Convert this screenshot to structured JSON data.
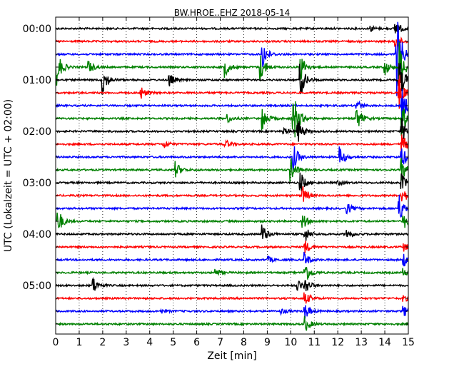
{
  "chart_data": {
    "type": "line",
    "title": "BW.HROE..EHZ 2018-05-14",
    "xlabel": "Zeit  [min]",
    "ylabel": "UTC (Lokalzeit = UTC + 02:00)",
    "xlim": [
      0,
      15
    ],
    "x_ticks": [
      "0",
      "1",
      "2",
      "3",
      "4",
      "5",
      "6",
      "7",
      "8",
      "9",
      "10",
      "11",
      "12",
      "13",
      "14",
      "15"
    ],
    "y_tick_labels": [
      "00:00",
      "01:00",
      "02:00",
      "03:00",
      "04:00",
      "05:00"
    ],
    "trace_interval_min": 15,
    "grid": "vertical dotted lines at each minute",
    "color_cycle": [
      "#000000",
      "#ff0000",
      "#0000ff",
      "#008000"
    ],
    "traces": [
      {
        "start": "00:00",
        "events": [
          {
            "t": 13.4,
            "amp": 4
          },
          {
            "t": 14.45,
            "amp": 14
          }
        ]
      },
      {
        "start": "00:15",
        "events": [
          {
            "t": 14.45,
            "amp": 14
          }
        ]
      },
      {
        "start": "00:30",
        "events": [
          {
            "t": 14.5,
            "amp": 60
          },
          {
            "t": 8.8,
            "amp": 20
          }
        ]
      },
      {
        "start": "00:45",
        "events": [
          {
            "t": 0.05,
            "amp": 25
          },
          {
            "t": 1.4,
            "amp": 10
          },
          {
            "t": 7.2,
            "amp": 14
          },
          {
            "t": 8.7,
            "amp": 22
          },
          {
            "t": 10.4,
            "amp": 22
          },
          {
            "t": 14.0,
            "amp": 12
          },
          {
            "t": 14.6,
            "amp": 40
          }
        ]
      },
      {
        "start": "01:00",
        "events": [
          {
            "t": 2.0,
            "amp": 22
          },
          {
            "t": 4.8,
            "amp": 12
          },
          {
            "t": 10.4,
            "amp": 25
          },
          {
            "t": 14.6,
            "amp": 35
          }
        ]
      },
      {
        "start": "01:15",
        "events": [
          {
            "t": 3.6,
            "amp": 10
          },
          {
            "t": 14.6,
            "amp": 30
          }
        ]
      },
      {
        "start": "01:30",
        "events": [
          {
            "t": 12.8,
            "amp": 8
          },
          {
            "t": 14.7,
            "amp": 30
          }
        ]
      },
      {
        "start": "01:45",
        "events": [
          {
            "t": 7.3,
            "amp": 6
          },
          {
            "t": 8.8,
            "amp": 16
          },
          {
            "t": 10.1,
            "amp": 45
          },
          {
            "t": 12.8,
            "amp": 18
          },
          {
            "t": 14.7,
            "amp": 28
          }
        ]
      },
      {
        "start": "02:00",
        "events": [
          {
            "t": 9.7,
            "amp": 5
          },
          {
            "t": 10.3,
            "amp": 18
          },
          {
            "t": 14.7,
            "amp": 20
          }
        ]
      },
      {
        "start": "02:15",
        "events": [
          {
            "t": 4.6,
            "amp": 6
          },
          {
            "t": 7.2,
            "amp": 7
          },
          {
            "t": 14.7,
            "amp": 18
          }
        ]
      },
      {
        "start": "02:30",
        "events": [
          {
            "t": 12.1,
            "amp": 14
          },
          {
            "t": 10.1,
            "amp": 20
          },
          {
            "t": 14.7,
            "amp": 18
          }
        ]
      },
      {
        "start": "02:45",
        "events": [
          {
            "t": 5.1,
            "amp": 12
          },
          {
            "t": 10.0,
            "amp": 18
          },
          {
            "t": 14.7,
            "amp": 16
          }
        ]
      },
      {
        "start": "03:00",
        "events": [
          {
            "t": 12.0,
            "amp": 4
          },
          {
            "t": 10.4,
            "amp": 16
          },
          {
            "t": 14.7,
            "amp": 14
          }
        ]
      },
      {
        "start": "03:15",
        "events": [
          {
            "t": 10.5,
            "amp": 14
          },
          {
            "t": 14.7,
            "amp": 16
          }
        ]
      },
      {
        "start": "03:30",
        "events": [
          {
            "t": 12.4,
            "amp": 8
          },
          {
            "t": 14.6,
            "amp": 22
          }
        ]
      },
      {
        "start": "03:45",
        "events": [
          {
            "t": 0.1,
            "amp": 18
          },
          {
            "t": 10.5,
            "amp": 12
          },
          {
            "t": 14.8,
            "amp": 12
          }
        ]
      },
      {
        "start": "04:00",
        "events": [
          {
            "t": 8.8,
            "amp": 14
          },
          {
            "t": 12.4,
            "amp": 8
          },
          {
            "t": 10.6,
            "amp": 12
          }
        ]
      },
      {
        "start": "04:15",
        "events": [
          {
            "t": 10.6,
            "amp": 10
          },
          {
            "t": 14.8,
            "amp": 6
          }
        ]
      },
      {
        "start": "04:30",
        "events": [
          {
            "t": 9.0,
            "amp": 5
          },
          {
            "t": 10.6,
            "amp": 10
          },
          {
            "t": 14.8,
            "amp": 10
          }
        ]
      },
      {
        "start": "04:45",
        "events": [
          {
            "t": 6.8,
            "amp": 6
          },
          {
            "t": 10.6,
            "amp": 18
          },
          {
            "t": 14.8,
            "amp": 6
          }
        ]
      },
      {
        "start": "05:00",
        "events": [
          {
            "t": 1.6,
            "amp": 12
          },
          {
            "t": 10.3,
            "amp": 8
          },
          {
            "t": 10.6,
            "amp": 12
          }
        ]
      },
      {
        "start": "05:15",
        "events": [
          {
            "t": 10.6,
            "amp": 10
          },
          {
            "t": 14.8,
            "amp": 5
          }
        ]
      },
      {
        "start": "05:30",
        "events": [
          {
            "t": 4.5,
            "amp": 3
          },
          {
            "t": 9.6,
            "amp": 4
          },
          {
            "t": 10.6,
            "amp": 12
          },
          {
            "t": 14.8,
            "amp": 8
          }
        ]
      },
      {
        "start": "05:45",
        "events": [
          {
            "t": 10.6,
            "amp": 12
          }
        ]
      }
    ]
  }
}
